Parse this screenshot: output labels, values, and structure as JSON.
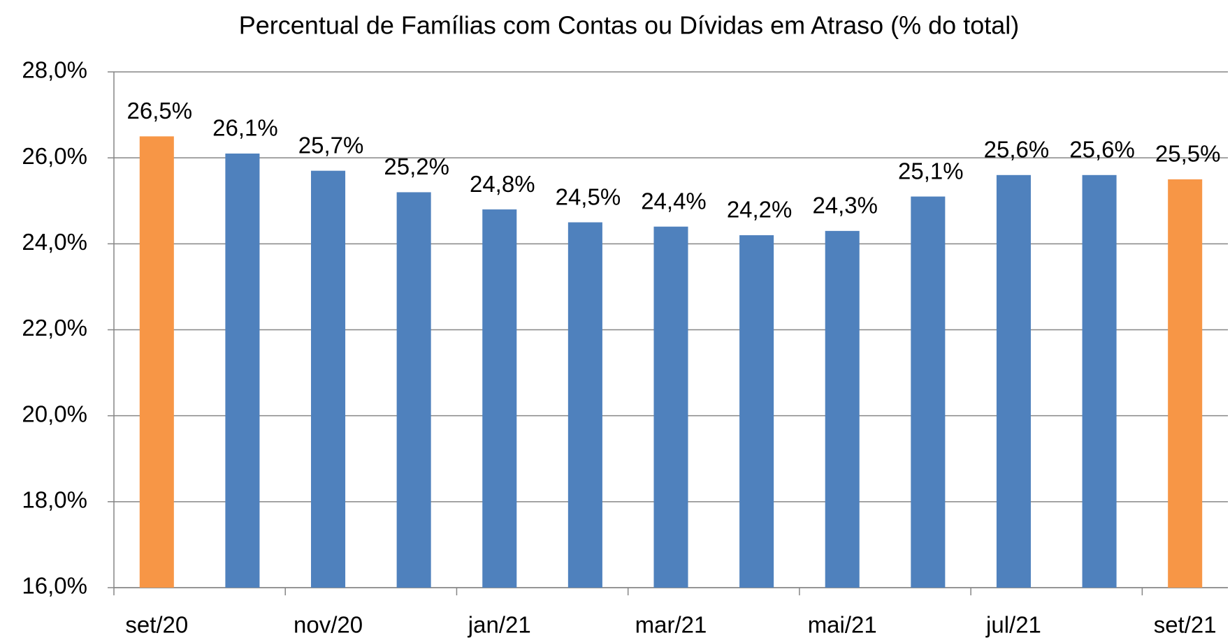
{
  "chart_data": {
    "type": "bar",
    "title": "Percentual de Famílias com Contas ou Dívidas em Atraso  (% do total)",
    "categories": [
      "set/20",
      null,
      "nov/20",
      null,
      "jan/21",
      null,
      "mar/21",
      null,
      "mai/21",
      null,
      "jul/21",
      null,
      "set/21"
    ],
    "values": [
      26.5,
      26.1,
      25.7,
      25.2,
      24.8,
      24.5,
      24.4,
      24.2,
      24.3,
      25.1,
      25.6,
      25.6,
      25.5
    ],
    "value_labels": [
      "26,5%",
      "26,1%",
      "25,7%",
      "25,2%",
      "24,8%",
      "24,5%",
      "24,4%",
      "24,2%",
      "24,3%",
      "25,1%",
      "25,6%",
      "25,6%",
      "25,5%"
    ],
    "colors": [
      "#f79646",
      "#4f81bd",
      "#4f81bd",
      "#4f81bd",
      "#4f81bd",
      "#4f81bd",
      "#4f81bd",
      "#4f81bd",
      "#4f81bd",
      "#4f81bd",
      "#4f81bd",
      "#4f81bd",
      "#f79646"
    ],
    "ylim": [
      16,
      28
    ],
    "yticks": [
      {
        "value": 16,
        "label": "16,0%"
      },
      {
        "value": 18,
        "label": "18,0%"
      },
      {
        "value": 20,
        "label": "20,0%"
      },
      {
        "value": 22,
        "label": "22,0%"
      },
      {
        "value": 24,
        "label": "24,0%"
      },
      {
        "value": 26,
        "label": "26,0%"
      },
      {
        "value": 28,
        "label": "28,0%"
      }
    ],
    "grid": true
  }
}
